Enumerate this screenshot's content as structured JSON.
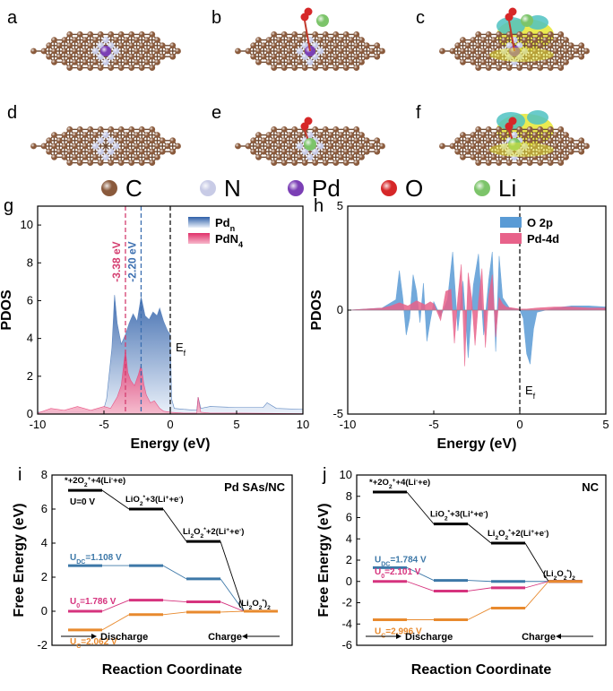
{
  "structures": {
    "panels": [
      {
        "label": "a",
        "atoms": [
          "C",
          "N",
          "Pd"
        ]
      },
      {
        "label": "b",
        "atoms": [
          "C",
          "N",
          "Pd",
          "O",
          "Li"
        ]
      },
      {
        "label": "c",
        "atoms": [
          "C",
          "N",
          "Pd",
          "O",
          "Li"
        ],
        "charge_density": true
      },
      {
        "label": "d",
        "atoms": [
          "C",
          "N"
        ]
      },
      {
        "label": "e",
        "atoms": [
          "C",
          "N",
          "O",
          "Li"
        ]
      },
      {
        "label": "f",
        "atoms": [
          "C",
          "N",
          "O",
          "Li"
        ],
        "charge_density": true
      }
    ],
    "legend": [
      {
        "symbol": "C",
        "color": "#8a5a3c"
      },
      {
        "symbol": "N",
        "color": "#c8cbe6"
      },
      {
        "symbol": "Pd",
        "color": "#7b3fb5"
      },
      {
        "symbol": "O",
        "color": "#d62728"
      },
      {
        "symbol": "Li",
        "color": "#7cc46a"
      }
    ],
    "density_colors": {
      "positive": "#e6e632",
      "negative": "#4fc2c2"
    }
  },
  "chart_data": [
    {
      "label": "g",
      "type": "area",
      "title": "",
      "xlabel": "Energy (eV)",
      "ylabel": "PDOS",
      "xlim": [
        -10,
        10
      ],
      "ylim": [
        0,
        11
      ],
      "xticks": [
        "-10",
        "-5",
        "0",
        "5",
        "10"
      ],
      "yticks": [
        "0",
        "2",
        "4",
        "6",
        "8",
        "10"
      ],
      "series": [
        {
          "name": "Pdn",
          "name_main": "Pd",
          "name_sub": "n",
          "color": "#4a78b8",
          "x": [
            -10,
            -8,
            -6,
            -5,
            -4.8,
            -4.4,
            -4.2,
            -4.0,
            -3.7,
            -3.38,
            -3.1,
            -2.8,
            -2.5,
            -2.2,
            -1.9,
            -1.6,
            -1.3,
            -1.0,
            -0.8,
            -0.5,
            -0.2,
            0,
            0.1,
            0.3,
            1,
            2,
            2.1,
            2.3,
            3,
            5,
            7,
            7.3,
            8,
            10
          ],
          "y": [
            0.1,
            0.1,
            0.15,
            0.3,
            0.8,
            3.5,
            6.3,
            4.8,
            3.7,
            4.2,
            4.8,
            5.3,
            4.9,
            6.2,
            5.2,
            5.0,
            5.4,
            5.2,
            5.6,
            4.9,
            4.4,
            4.2,
            0.8,
            0.3,
            0.25,
            0.2,
            0.9,
            0.3,
            0.4,
            0.35,
            0.35,
            0.6,
            0.3,
            0.25
          ]
        },
        {
          "name": "PdN4",
          "name_main": "PdN",
          "name_sub": "4",
          "color": "#e8457a",
          "x": [
            -10,
            -9,
            -8,
            -7,
            -6.5,
            -6,
            -5.5,
            -5,
            -4.5,
            -4,
            -3.7,
            -3.38,
            -3.2,
            -3.0,
            -2.7,
            -2.4,
            -2.2,
            -2.0,
            -1.8,
            -1.5,
            -1.2,
            -0.8,
            -0.5,
            0,
            1,
            2,
            2.1,
            2.3,
            3,
            5,
            10
          ],
          "y": [
            0.05,
            0.3,
            0.2,
            0.4,
            0.3,
            0.2,
            0.3,
            0.4,
            0.3,
            0.9,
            1.5,
            3.4,
            2.2,
            1.8,
            1.5,
            2.1,
            2.6,
            1.6,
            1.0,
            0.6,
            0.7,
            0.3,
            0.15,
            0.1,
            0.05,
            0.05,
            0.9,
            0.1,
            0.05,
            0.05,
            0.02
          ]
        }
      ],
      "markers": [
        {
          "x": -3.38,
          "label": "-3.38 eV",
          "color": "#d43d6f"
        },
        {
          "x": -2.2,
          "label": "-2.20 eV",
          "color": "#3c6fb0"
        }
      ],
      "fermi": {
        "x": 0,
        "label_main": "E",
        "label_sub": "f"
      }
    },
    {
      "label": "h",
      "type": "area",
      "title": "",
      "xlabel": "Energy (eV)",
      "ylabel": "PDOS",
      "xlim": [
        -10,
        5
      ],
      "ylim": [
        -5,
        5
      ],
      "xticks": [
        "-10",
        "-5",
        "0",
        "5"
      ],
      "yticks": [
        "-5",
        "0",
        "5"
      ],
      "series": [
        {
          "name": "O 2p",
          "color": "#5a9bd5",
          "x": [
            -10,
            -8,
            -7.2,
            -7.0,
            -6.8,
            -6.6,
            -6.4,
            -6.2,
            -6.0,
            -5.8,
            -5.6,
            -5.4,
            -5.2,
            -5.0,
            -4.6,
            -4.2,
            -3.9,
            -3.6,
            -3.3,
            -3.0,
            -2.7,
            -2.4,
            -2.1,
            -1.8,
            -1.6,
            -1.4,
            -1.2,
            -1.0,
            -0.6,
            -0.2,
            0,
            0.2,
            0.4,
            0.6,
            0.8,
            1.0,
            2,
            3,
            4,
            5
          ],
          "y": [
            0,
            0.1,
            0.5,
            1.9,
            0.6,
            -1.2,
            -0.4,
            1.7,
            0.9,
            -0.6,
            1.3,
            -1.5,
            -0.5,
            0.4,
            -0.3,
            0.5,
            2.8,
            -1.0,
            1.4,
            -2.3,
            1.2,
            2.7,
            -1.2,
            1.5,
            2.8,
            -2.0,
            2.6,
            0.6,
            0.1,
            0.05,
            0,
            -0.4,
            -2.1,
            -2.6,
            -0.9,
            -0.1,
            0.1,
            0.2,
            0.2,
            0.15
          ]
        },
        {
          "name": "Pd-4d",
          "color": "#e8628a",
          "x": [
            -10,
            -8,
            -7.5,
            -7,
            -6.5,
            -6,
            -5.5,
            -5.2,
            -5.0,
            -4.6,
            -4.3,
            -4.0,
            -3.8,
            -3.6,
            -3.4,
            -3.2,
            -3.0,
            -2.8,
            -2.6,
            -2.4,
            -2.2,
            -2.0,
            -1.8,
            -1.6,
            -1.4,
            -1.2,
            -1.0,
            -0.8,
            -0.4,
            0,
            0.4,
            1,
            2,
            3,
            4,
            5
          ],
          "y": [
            0,
            0.1,
            0.2,
            0.35,
            0.2,
            0.45,
            0.25,
            0.4,
            0.3,
            -0.5,
            0.9,
            1.0,
            -1.6,
            0.6,
            2.2,
            -2.7,
            1.8,
            0.6,
            -1.7,
            0.4,
            2.0,
            -1.8,
            0.7,
            1.7,
            -1.3,
            0.6,
            0.3,
            0.15,
            0.1,
            0.05,
            0.05,
            0.1,
            0.15,
            0.15,
            0.1,
            0.1
          ]
        }
      ],
      "fermi": {
        "x": 0,
        "label_main": "E",
        "label_sub": "f"
      }
    },
    {
      "label": "i",
      "type": "line",
      "title": "Pd SAs/NC",
      "xlabel": "Reaction Coordinate",
      "ylabel": "Free Energy (eV)",
      "ylim": [
        -2,
        8
      ],
      "yticks": [
        "-2",
        "0",
        "2",
        "4",
        "6",
        "8"
      ],
      "series": [
        {
          "name": "U=0 V",
          "color": "#000000",
          "values": [
            7.1,
            6.0,
            4.1,
            0
          ]
        },
        {
          "name": "UDC=1.108 V",
          "color": "#3d78a8",
          "values": [
            2.68,
            2.68,
            1.9,
            0
          ]
        },
        {
          "name": "U0=1.786 V",
          "color": "#d6337e",
          "values": [
            0.0,
            0.65,
            0.55,
            0
          ]
        },
        {
          "name": "UC=2.062 V",
          "color": "#e88a2e",
          "values": [
            -1.1,
            -0.2,
            -0.05,
            0
          ]
        }
      ],
      "step_labels": [
        {
          "step": 0,
          "main": "*+2O",
          "sub": "2",
          "rest": "+4(Li",
          "sup": "+",
          "tail": "+e",
          "sup2": "-",
          "end": ")"
        },
        {
          "step": 1,
          "main": "LiO",
          "sub": "2",
          "sup": "*",
          "rest": "+3(Li",
          "sup2": "+",
          "tail": "+e",
          "sup3": "-",
          "end": ")"
        },
        {
          "step": 2,
          "main": "Li",
          "sub": "2",
          "mid": "O",
          "sub2": "2",
          "sup": "*",
          "rest": "+2(Li",
          "sup2": "+",
          "tail": "+e",
          "sup3": "-",
          "end": ")"
        },
        {
          "step": 3,
          "main": "(Li",
          "sub": "2",
          "mid": "O",
          "sub2": "2",
          "sup": "*",
          "end": ")",
          "sub3": "2"
        }
      ],
      "u_labels": [
        {
          "main": "U=0 V",
          "sub": ""
        },
        {
          "main": "U",
          "sub": "DC",
          "rest": "=1.108 V"
        },
        {
          "main": "U",
          "sub": "0",
          "rest": "=1.786 V"
        },
        {
          "main": "U",
          "sub": "C",
          "rest": "=2.062 V"
        }
      ],
      "arrow_labels": [
        "Discharge",
        "Charge"
      ]
    },
    {
      "label": "j",
      "type": "line",
      "title": "NC",
      "xlabel": "Reaction Coordinate",
      "ylabel": "Free Energy (eV)",
      "ylim": [
        -6,
        10
      ],
      "yticks": [
        "-6",
        "-4",
        "-2",
        "0",
        "2",
        "4",
        "6",
        "8",
        "10"
      ],
      "series": [
        {
          "name": "U=0 V",
          "color": "#000000",
          "values": [
            8.4,
            5.4,
            3.6,
            0
          ]
        },
        {
          "name": "UDC=1.784 V",
          "color": "#3d78a8",
          "values": [
            1.3,
            0.1,
            0.0,
            0
          ]
        },
        {
          "name": "U0=2.101 V",
          "color": "#d6337e",
          "values": [
            0.0,
            -0.9,
            -0.6,
            0
          ]
        },
        {
          "name": "UC=2.996 V",
          "color": "#e88a2e",
          "values": [
            -3.6,
            -3.6,
            -2.5,
            0
          ]
        }
      ],
      "step_labels": [
        {
          "step": 0,
          "main": "*+2O",
          "sub": "2",
          "rest": "+4(Li",
          "sup": "+",
          "tail": "+e",
          "sup2": "-",
          "end": ")"
        },
        {
          "step": 1,
          "main": "LiO",
          "sub": "2",
          "sup": "*",
          "rest": "+3(Li",
          "sup2": "+",
          "tail": "+e",
          "sup3": "-",
          "end": ")"
        },
        {
          "step": 2,
          "main": "Li",
          "sub": "2",
          "mid": "O",
          "sub2": "2",
          "sup": "*",
          "rest": "+2(Li",
          "sup2": "+",
          "tail": "+e",
          "sup3": "-",
          "end": ")"
        },
        {
          "step": 3,
          "main": "(Li",
          "sub": "2",
          "mid": "O",
          "sub2": "2",
          "sup": "*",
          "end": ")",
          "sub3": "2"
        }
      ],
      "u_labels": [
        {
          "main": "",
          "sub": ""
        },
        {
          "main": "U",
          "sub": "DC",
          "rest": "=1.784 V"
        },
        {
          "main": "U",
          "sub": "0",
          "rest": "=2.101 V"
        },
        {
          "main": "U",
          "sub": "C",
          "rest": "=2.996 V"
        }
      ],
      "arrow_labels": [
        "Discharge",
        "Charge"
      ]
    }
  ]
}
